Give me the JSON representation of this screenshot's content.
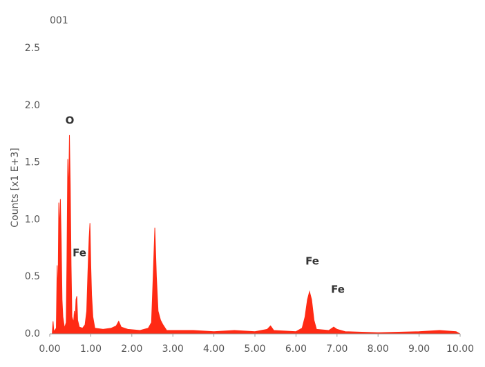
{
  "chart_data": {
    "type": "area",
    "title": "001",
    "ylabel": "Counts [x1 E+3]",
    "color": "#ff2a14",
    "x": [
      0,
      0.06,
      0.08,
      0.1,
      0.16,
      0.18,
      0.2,
      0.22,
      0.24,
      0.26,
      0.28,
      0.3,
      0.32,
      0.36,
      0.4,
      0.42,
      0.44,
      0.46,
      0.48,
      0.5,
      0.52,
      0.54,
      0.58,
      0.6,
      0.62,
      0.64,
      0.66,
      0.68,
      0.72,
      0.8,
      0.86,
      0.9,
      0.93,
      0.96,
      0.98,
      1.0,
      1.02,
      1.05,
      1.1,
      1.3,
      1.5,
      1.62,
      1.68,
      1.74,
      1.9,
      2.2,
      2.4,
      2.48,
      2.52,
      2.56,
      2.6,
      2.64,
      2.7,
      2.76,
      2.85,
      3.5,
      4.0,
      4.5,
      5.0,
      5.3,
      5.38,
      5.46,
      6.0,
      6.15,
      6.22,
      6.28,
      6.33,
      6.38,
      6.44,
      6.5,
      6.8,
      6.92,
      7.0,
      7.2,
      8.0,
      9.0,
      9.5,
      9.9,
      10
    ],
    "values": [
      0,
      0,
      0.11,
      0.02,
      0.05,
      0.6,
      0.3,
      1.15,
      0.9,
      1.18,
      0.82,
      0.3,
      0.15,
      0.05,
      0.1,
      0.64,
      1.53,
      1.2,
      1.74,
      1.3,
      0.6,
      0.15,
      0.1,
      0.2,
      0.12,
      0.3,
      0.33,
      0.12,
      0.06,
      0.05,
      0.08,
      0.2,
      0.53,
      0.84,
      0.97,
      0.6,
      0.34,
      0.15,
      0.05,
      0.04,
      0.05,
      0.07,
      0.11,
      0.06,
      0.04,
      0.03,
      0.05,
      0.1,
      0.5,
      0.93,
      0.5,
      0.2,
      0.12,
      0.08,
      0.03,
      0.03,
      0.02,
      0.03,
      0.02,
      0.04,
      0.07,
      0.03,
      0.02,
      0.05,
      0.15,
      0.3,
      0.37,
      0.3,
      0.12,
      0.04,
      0.03,
      0.06,
      0.04,
      0.02,
      0.01,
      0.02,
      0.03,
      0.02,
      0
    ],
    "xlim": [
      0,
      10
    ],
    "ylim": [
      0,
      2.5
    ],
    "xticks": [
      {
        "value": 0,
        "label": "0.00"
      },
      {
        "value": 1,
        "label": "1.00"
      },
      {
        "value": 2,
        "label": "2.00"
      },
      {
        "value": 3,
        "label": "3.00"
      },
      {
        "value": 4,
        "label": "4.00"
      },
      {
        "value": 5,
        "label": "5.00"
      },
      {
        "value": 6,
        "label": "6.00"
      },
      {
        "value": 7,
        "label": "7.00"
      },
      {
        "value": 8,
        "label": "8.00"
      },
      {
        "value": 9,
        "label": "9.00"
      },
      {
        "value": 10,
        "label": "10.00"
      }
    ],
    "yticks": [
      {
        "value": 0,
        "label": "0.0"
      },
      {
        "value": 0.5,
        "label": "0.5"
      },
      {
        "value": 1,
        "label": "1.0"
      },
      {
        "value": 1.5,
        "label": "1.5"
      },
      {
        "value": 2,
        "label": "2.0"
      },
      {
        "value": 2.5,
        "label": "2.5"
      }
    ],
    "annotations": [
      "O",
      "Fe",
      "Fe",
      "Fe"
    ]
  }
}
